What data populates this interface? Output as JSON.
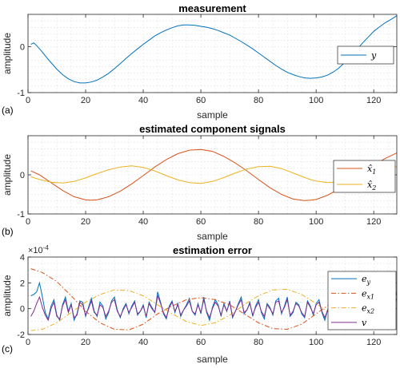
{
  "chart_data": [
    {
      "type": "line",
      "panel_label": "(a)",
      "title": "measurement",
      "xlabel": "sample",
      "ylabel": "amplitude",
      "xlim": [
        0,
        128
      ],
      "ylim": [
        -1,
        0.7
      ],
      "xticks": [
        0,
        20,
        40,
        60,
        80,
        100,
        120
      ],
      "yticks": [
        -1,
        0
      ],
      "grid": true,
      "legend_position": "right",
      "x": [
        1,
        2,
        3,
        4,
        5,
        6,
        8,
        10,
        12,
        14,
        16,
        18,
        20,
        22,
        24,
        26,
        28,
        30,
        32,
        34,
        36,
        38,
        40,
        42,
        44,
        46,
        48,
        50,
        52,
        54,
        56,
        58,
        60,
        62,
        64,
        66,
        68,
        70,
        72,
        74,
        76,
        78,
        80,
        82,
        84,
        86,
        88,
        90,
        92,
        94,
        96,
        98,
        100,
        102,
        104,
        106,
        108,
        110,
        112,
        114,
        116,
        118,
        120,
        122,
        124,
        126,
        128
      ],
      "series": [
        {
          "name": "y",
          "color": "#0072BD",
          "values": [
            0.05,
            0.08,
            0.02,
            -0.05,
            -0.12,
            -0.2,
            -0.35,
            -0.49,
            -0.61,
            -0.7,
            -0.76,
            -0.79,
            -0.79,
            -0.77,
            -0.73,
            -0.66,
            -0.58,
            -0.48,
            -0.37,
            -0.26,
            -0.15,
            -0.05,
            0.05,
            0.14,
            0.23,
            0.3,
            0.36,
            0.41,
            0.45,
            0.47,
            0.47,
            0.46,
            0.44,
            0.42,
            0.39,
            0.35,
            0.3,
            0.25,
            0.18,
            0.11,
            0.03,
            -0.05,
            -0.14,
            -0.23,
            -0.32,
            -0.41,
            -0.49,
            -0.56,
            -0.61,
            -0.65,
            -0.68,
            -0.69,
            -0.68,
            -0.66,
            -0.62,
            -0.55,
            -0.46,
            -0.34,
            -0.21,
            -0.07,
            0.07,
            0.2,
            0.33,
            0.43,
            0.52,
            0.59,
            0.67
          ]
        }
      ]
    },
    {
      "type": "line",
      "panel_label": "(b)",
      "title": "estimated component signals",
      "xlabel": "sample",
      "ylabel": "amplitude",
      "xlim": [
        0,
        128
      ],
      "ylim": [
        -1,
        1
      ],
      "xticks": [
        0,
        20,
        40,
        60,
        80,
        100,
        120
      ],
      "yticks": [
        -1,
        0
      ],
      "grid": true,
      "legend_position": "right",
      "x": [
        1,
        4,
        8,
        12,
        16,
        20,
        22,
        24,
        28,
        32,
        36,
        40,
        44,
        48,
        52,
        56,
        60,
        64,
        68,
        72,
        76,
        80,
        84,
        88,
        92,
        96,
        98,
        100,
        104,
        108,
        112,
        116,
        120,
        124,
        128
      ],
      "series": [
        {
          "name": "x̂1",
          "label": "x̂",
          "sub": "1",
          "color": "#D95319",
          "values": [
            0.1,
            0.0,
            -0.2,
            -0.4,
            -0.56,
            -0.64,
            -0.65,
            -0.64,
            -0.56,
            -0.42,
            -0.23,
            -0.02,
            0.2,
            0.39,
            0.54,
            0.63,
            0.65,
            0.6,
            0.47,
            0.3,
            0.1,
            -0.12,
            -0.33,
            -0.5,
            -0.62,
            -0.66,
            -0.65,
            -0.63,
            -0.52,
            -0.36,
            -0.17,
            0.05,
            0.25,
            0.42,
            0.56
          ]
        },
        {
          "name": "x̂2",
          "label": "x̂",
          "sub": "2",
          "color": "#EDB120",
          "values": [
            -0.05,
            -0.12,
            -0.19,
            -0.21,
            -0.17,
            -0.08,
            -0.02,
            0.03,
            0.13,
            0.2,
            0.23,
            0.19,
            0.1,
            -0.02,
            -0.13,
            -0.2,
            -0.22,
            -0.17,
            -0.07,
            0.05,
            0.15,
            0.21,
            0.22,
            0.16,
            0.05,
            -0.07,
            -0.12,
            -0.16,
            -0.2,
            -0.19,
            -0.12,
            -0.01,
            0.1,
            0.18,
            0.21
          ]
        }
      ]
    },
    {
      "type": "line",
      "panel_label": "(c)",
      "title": "estimation error",
      "xlabel": "sample",
      "ylabel": "amplitude",
      "exponent_label": "×10",
      "exponent_power": "-4",
      "xlim": [
        0,
        128
      ],
      "ylim": [
        -2,
        4
      ],
      "xticks": [
        0,
        20,
        40,
        60,
        80,
        100,
        120
      ],
      "yticks": [
        -2,
        0,
        2,
        4
      ],
      "grid": true,
      "legend_position": "right",
      "x": [
        1,
        2,
        3,
        4,
        5,
        6,
        7,
        8,
        9,
        10,
        11,
        12,
        13,
        14,
        15,
        16,
        17,
        18,
        19,
        20,
        21,
        22,
        23,
        24,
        25,
        26,
        27,
        28,
        29,
        30,
        31,
        32,
        33,
        34,
        35,
        36,
        37,
        38,
        39,
        40,
        41,
        42,
        43,
        44,
        45,
        46,
        47,
        48,
        49,
        50,
        51,
        52,
        53,
        54,
        55,
        56,
        57,
        58,
        59,
        60,
        61,
        62,
        63,
        64,
        65,
        66,
        67,
        68,
        69,
        70,
        71,
        72,
        73,
        74,
        75,
        76,
        77,
        78,
        79,
        80,
        81,
        82,
        83,
        84,
        85,
        86,
        87,
        88,
        89,
        90,
        91,
        92,
        93,
        94,
        95,
        96,
        97,
        98,
        99,
        100,
        101,
        102,
        103,
        104,
        105,
        106,
        107,
        108,
        109,
        110,
        111,
        112,
        113,
        114,
        115,
        116,
        117,
        118,
        119,
        120,
        121,
        122,
        123,
        124,
        125,
        126,
        127,
        128
      ],
      "series": [
        {
          "name": "ey",
          "label": "e",
          "sub": "y",
          "color": "#0072BD",
          "dash": "solid",
          "values": [
            1.0,
            1.1,
            1.3,
            2.0,
            0.9,
            -0.3,
            -0.8,
            0.2,
            0.7,
            -0.5,
            -0.9,
            0.3,
            0.9,
            -0.2,
            0.4,
            -0.9,
            -0.4,
            0.6,
            0.5,
            -0.6,
            0.1,
            0.8,
            -0.2,
            -0.6,
            0.5,
            0.2,
            -0.8,
            -0.3,
            0.6,
            0.9,
            -0.1,
            -0.7,
            0.0,
            0.4,
            -0.4,
            0.2,
            0.6,
            -0.5,
            -0.2,
            0.3,
            -0.7,
            0.5,
            0.1,
            -0.3,
            1.3,
            0.5,
            -0.4,
            -0.8,
            0.2,
            0.6,
            -0.3,
            0.4,
            -0.6,
            -0.1,
            0.3,
            0.8,
            -0.2,
            -0.5,
            0.4,
            -0.4,
            0.9,
            -0.3,
            -0.9,
            0.1,
            0.7,
            0.3,
            -0.6,
            0.4,
            -0.2,
            0.6,
            -0.7,
            -0.2,
            0.4,
            0.9,
            -0.4,
            -0.1,
            0.5,
            -0.6,
            0.2,
            0.7,
            -0.3,
            -0.8,
            0.4,
            0.1,
            -0.5,
            0.6,
            0.8,
            -0.4,
            0.2,
            0.9,
            -0.6,
            -0.3,
            0.5,
            0.3,
            -0.4,
            -0.7,
            0.6,
            0.2,
            -0.5,
            0.4,
            0.7,
            -0.3,
            -0.9,
            -0.1,
            0.5,
            -0.2,
            0.6,
            -0.4,
            0.3,
            0.2,
            -0.5,
            0.4,
            -0.3,
            0.6,
            -0.2,
            0.1,
            0.5,
            -0.4,
            0.3,
            0.7,
            -0.2,
            0.4,
            -0.6,
            0.2,
            0.5,
            -0.1,
            2.0,
            1.0
          ]
        },
        {
          "name": "ex1",
          "label": "e",
          "sub": "x1",
          "color": "#D95319",
          "dash": "dashdot",
          "x": [
            1,
            5,
            10,
            15,
            20,
            25,
            30,
            35,
            40,
            45,
            50,
            55,
            60,
            65,
            70,
            75,
            80,
            85,
            90,
            95,
            100,
            105,
            110,
            115,
            120,
            125,
            128
          ],
          "values": [
            3.1,
            2.8,
            2.1,
            1.0,
            -0.2,
            -1.1,
            -1.6,
            -1.65,
            -1.2,
            -0.4,
            0.2,
            0.7,
            0.85,
            0.7,
            0.3,
            -0.4,
            -1.1,
            -1.55,
            -1.6,
            -1.2,
            -0.4,
            0.4,
            1.2,
            1.8,
            2.1,
            2.2,
            2.1
          ]
        },
        {
          "name": "ex2",
          "label": "e",
          "sub": "x2",
          "color": "#EDB120",
          "dash": "dashdot",
          "x": [
            1,
            5,
            10,
            15,
            20,
            25,
            30,
            35,
            40,
            45,
            50,
            55,
            60,
            65,
            70,
            75,
            80,
            85,
            90,
            95,
            100,
            105,
            110,
            115,
            120,
            125,
            128
          ],
          "values": [
            -1.7,
            -1.6,
            -1.1,
            -0.3,
            0.5,
            1.1,
            1.45,
            1.4,
            1.0,
            0.3,
            -0.4,
            -1.0,
            -1.3,
            -1.1,
            -0.5,
            0.3,
            1.0,
            1.45,
            1.5,
            1.1,
            0.4,
            -0.4,
            -1.0,
            -1.45,
            -1.55,
            -1.3,
            -1.0
          ]
        },
        {
          "name": "v",
          "label": "v",
          "sub": "",
          "color": "#7E2F8E",
          "dash": "solid",
          "values": [
            -0.6,
            -0.2,
            0.4,
            0.9,
            0.1,
            -0.5,
            -0.9,
            0.0,
            0.5,
            -0.6,
            -0.8,
            0.2,
            0.7,
            -0.3,
            0.3,
            -0.7,
            -0.5,
            0.5,
            0.3,
            -0.5,
            0.0,
            0.6,
            -0.3,
            -0.5,
            0.3,
            0.1,
            -0.6,
            -0.2,
            0.5,
            0.7,
            -0.2,
            -0.6,
            -0.1,
            0.3,
            -0.3,
            0.1,
            0.5,
            -0.4,
            -0.2,
            0.2,
            -0.6,
            0.4,
            0.0,
            -0.3,
            1.0,
            0.4,
            -0.3,
            -0.7,
            0.1,
            0.5,
            -0.2,
            0.3,
            -0.5,
            -0.1,
            0.2,
            0.6,
            -0.2,
            -0.4,
            0.3,
            -0.3,
            0.7,
            -0.2,
            -0.7,
            0.0,
            0.5,
            0.2,
            -0.5,
            0.3,
            -0.2,
            0.5,
            -0.6,
            -0.2,
            0.3,
            0.7,
            -0.3,
            -0.1,
            0.4,
            -0.5,
            0.1,
            0.5,
            -0.2,
            -0.6,
            0.3,
            0.0,
            -0.4,
            0.5,
            0.6,
            -0.3,
            0.1,
            0.7,
            -0.5,
            -0.2,
            0.4,
            0.2,
            -0.3,
            -0.6,
            0.5,
            0.1,
            -0.4,
            0.3,
            0.5,
            -0.2,
            -0.7,
            -0.1,
            0.4,
            -0.2,
            0.5,
            -0.3,
            0.2,
            0.1,
            -0.4,
            0.3,
            -0.2,
            0.5,
            -0.2,
            0.0,
            0.4,
            -0.3,
            0.2,
            0.5,
            -0.1,
            0.3,
            -0.5,
            0.1,
            0.4,
            -0.1,
            1.2,
            0.6
          ]
        }
      ]
    }
  ]
}
